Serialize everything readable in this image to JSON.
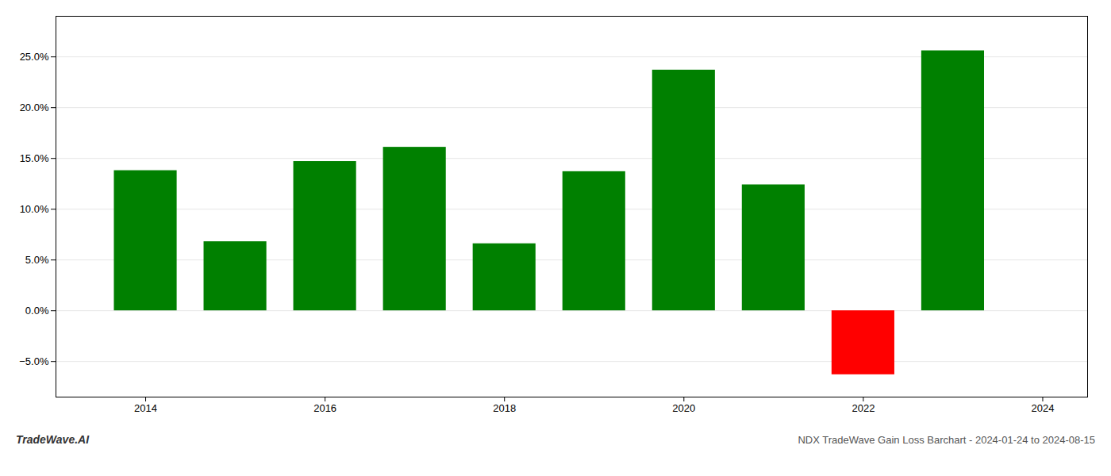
{
  "chart_data": {
    "type": "bar",
    "title": "NDX TradeWave Gain Loss Barchart - 2024-01-24 to 2024-08-15",
    "annotations": [
      "TradeWave.AI"
    ],
    "x": [
      2014,
      2015,
      2016,
      2017,
      2018,
      2019,
      2020,
      2021,
      2022,
      2023
    ],
    "values": [
      13.8,
      6.8,
      14.7,
      16.1,
      6.6,
      13.7,
      23.7,
      12.4,
      -6.3,
      25.6
    ],
    "colors": [
      "#008000",
      "#008000",
      "#008000",
      "#008000",
      "#008000",
      "#008000",
      "#008000",
      "#008000",
      "#ff0000",
      "#008000"
    ],
    "xlim": [
      2013.0,
      2024.5
    ],
    "xticks": [
      2014,
      2016,
      2018,
      2020,
      2022,
      2024
    ],
    "ylim": [
      -8.5,
      29.0
    ],
    "yticks": [
      {
        "value": -5.0,
        "label": "−5.0%"
      },
      {
        "value": 0.0,
        "label": "0.0%"
      },
      {
        "value": 5.0,
        "label": "5.0%"
      },
      {
        "value": 10.0,
        "label": "10.0%"
      },
      {
        "value": 15.0,
        "label": "15.0%"
      },
      {
        "value": 20.0,
        "label": "20.0%"
      },
      {
        "value": 25.0,
        "label": "25.0%"
      }
    ],
    "grid": "y"
  }
}
